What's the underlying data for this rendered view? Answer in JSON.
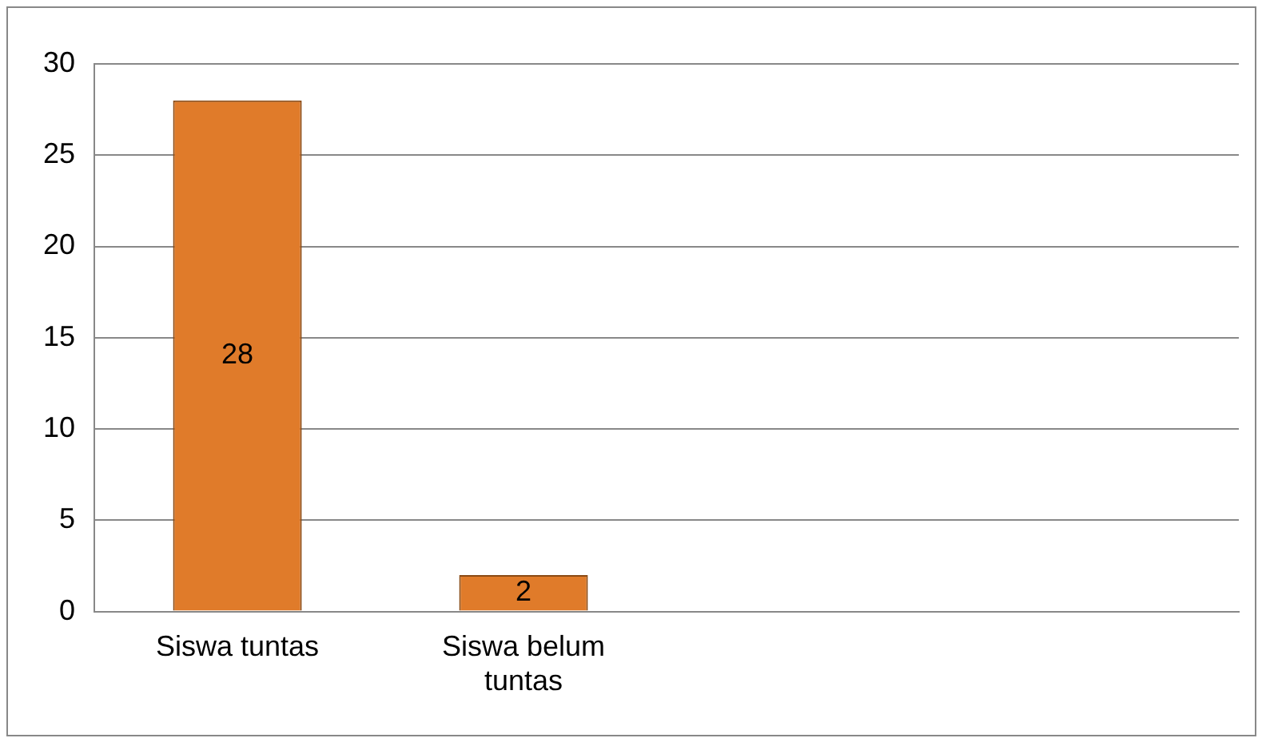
{
  "chart_data": {
    "type": "bar",
    "categories": [
      "Siswa tuntas",
      "Siswa belum tuntas",
      null,
      null
    ],
    "values": [
      28,
      2,
      null,
      null
    ],
    "color": "#e07b2a",
    "ylim": [
      0,
      30
    ],
    "yticks": [
      0,
      5,
      10,
      15,
      20,
      25,
      30
    ],
    "grid": "y",
    "legend": false,
    "data_labels": true
  }
}
